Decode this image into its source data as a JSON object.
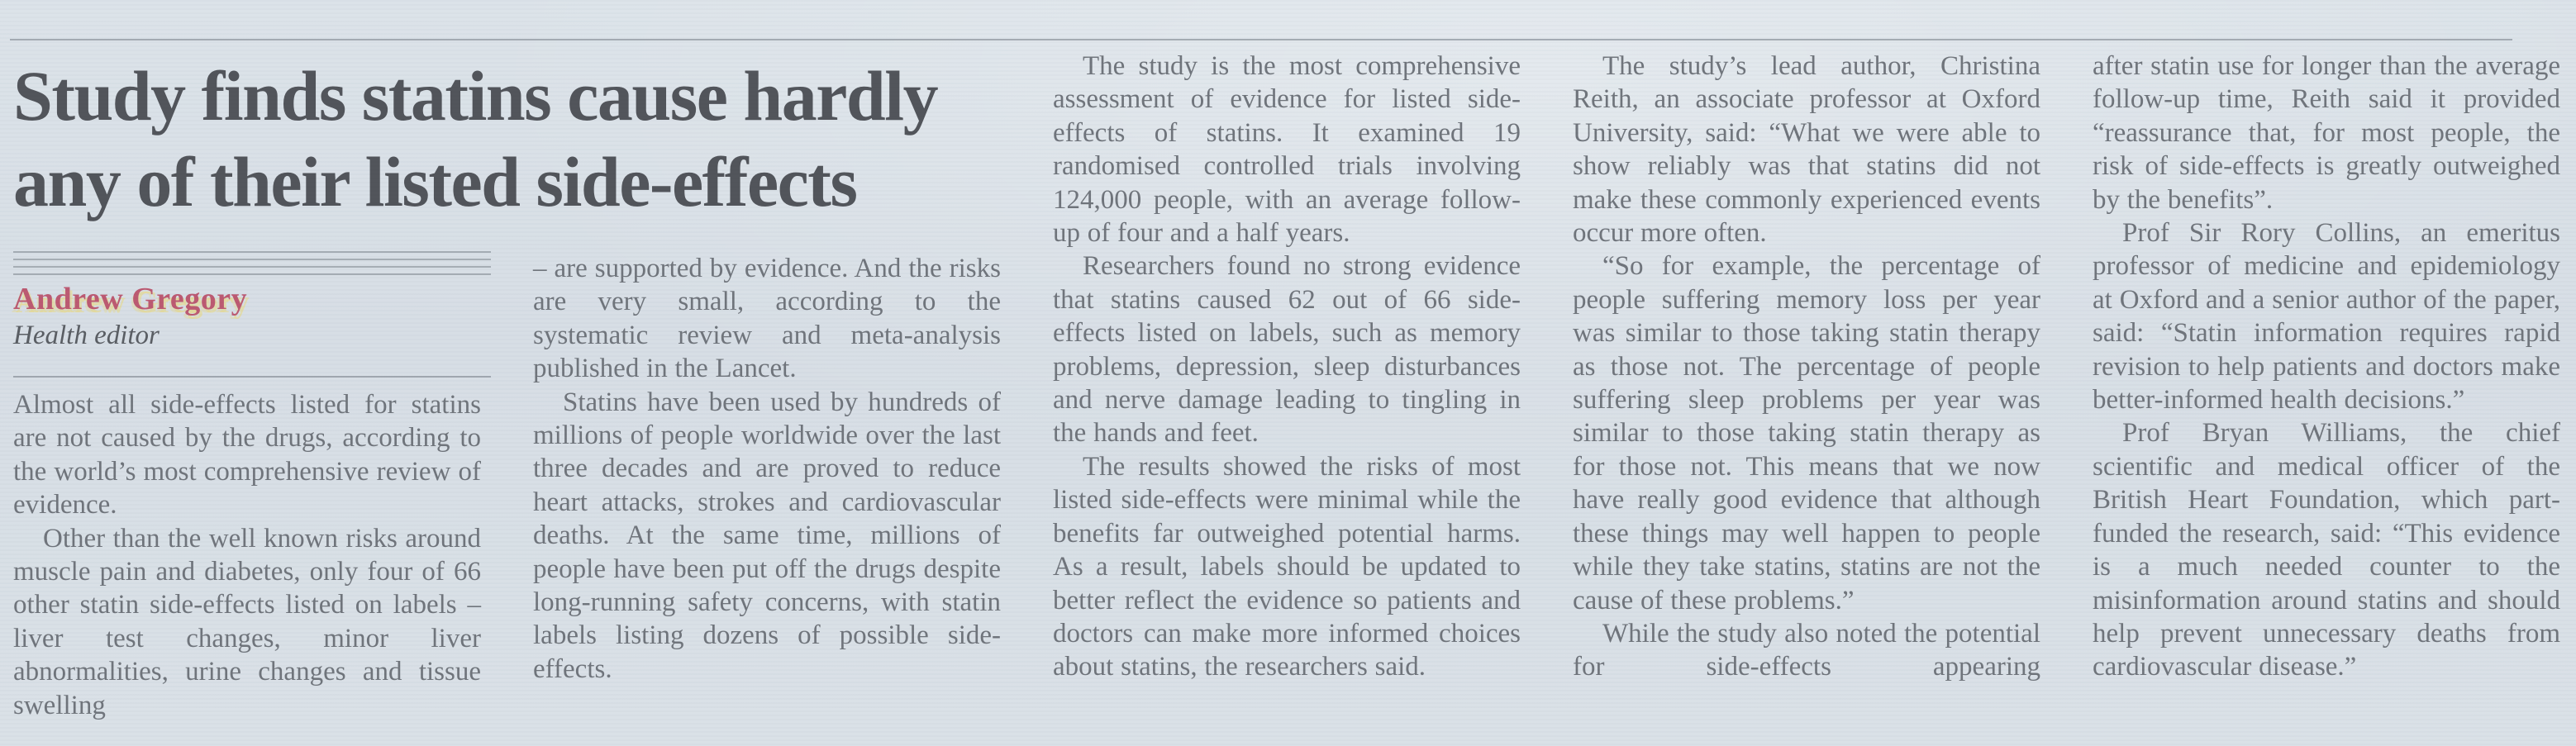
{
  "theme": {
    "paper": "#dae1e8",
    "ink": "#70757c",
    "headline-ink": "#52555b",
    "rule": "#99a0a8",
    "byline": "#bc5a72"
  },
  "article": {
    "headline_line1": "Study finds statins cause hardly",
    "headline_line2": "any of their listed side-effects",
    "byline": {
      "name": "Andrew Gregory",
      "role": "Health editor"
    },
    "columns": [
      {
        "paragraphs": [
          {
            "indent": false,
            "cont": false,
            "text": "Almost all side-effects listed for statins are not caused by the drugs, according to the world’s most comprehensive review of evidence."
          },
          {
            "indent": true,
            "cont": true,
            "text": "Other than the well known risks around muscle pain and diabetes, only four of 66 other statin side-effects listed on labels – liver test changes, minor liver abnormalities, urine changes and tissue swelling"
          }
        ]
      },
      {
        "paragraphs": [
          {
            "indent": false,
            "cont": false,
            "text": "– are supported by evidence. And the risks are very small, according to the systematic review and meta-analysis published in the Lancet."
          },
          {
            "indent": true,
            "cont": false,
            "text": "Statins have been used by hundreds of millions of people worldwide over the last three decades and are proved to reduce heart attacks, strokes and cardiovascular deaths. At the same time, millions of people have been put off the drugs despite long-running safety concerns, with statin labels listing dozens of possible side-effects."
          }
        ]
      },
      {
        "paragraphs": [
          {
            "indent": true,
            "cont": false,
            "text": "The study is the most comprehensive assessment of evidence for listed side-effects of statins. It examined 19 randomised controlled trials involving 124,000 people, with an average follow-up of four and a half years."
          },
          {
            "indent": true,
            "cont": false,
            "text": "Researchers found no strong evidence that statins caused 62 out of 66 side-effects listed on labels, such as memory problems, depression, sleep disturbances and nerve damage leading to tingling in the hands and feet."
          },
          {
            "indent": true,
            "cont": false,
            "text": "The results showed the risks of most listed side-effects were minimal while the benefits far outweighed potential harms. As a result, labels should be updated to better reflect the evidence so patients and doctors can make more informed choices about statins, the researchers said."
          }
        ]
      },
      {
        "paragraphs": [
          {
            "indent": true,
            "cont": false,
            "text": "The study’s lead author, Christina Reith, an associate professor at Oxford University, said: “What we were able to show reliably was that statins did not make these commonly experienced events occur more often."
          },
          {
            "indent": true,
            "cont": false,
            "text": "“So for example, the percentage of people suffering memory loss per year was similar to those taking statin therapy as those not. The percentage of people suffering sleep problems per year was similar to those taking statin therapy as for those not. This means that we now have really good evidence that although these things may well happen to people while they take statins, statins are not the cause of these problems.”"
          },
          {
            "indent": true,
            "cont": true,
            "text": "While the study also noted the potential for side-effects appearing"
          }
        ]
      },
      {
        "paragraphs": [
          {
            "indent": false,
            "cont": false,
            "text": "after statin use for longer than the average follow-up time, Reith said it provided “reassurance that, for most people, the risk of side-effects is greatly outweighed by the benefits”."
          },
          {
            "indent": true,
            "cont": false,
            "text": "Prof Sir Rory Collins, an emeritus professor of medicine and epidemiology at Oxford and a senior author of the paper, said: “Statin information requires rapid revision to help patients and doctors make better-informed health decisions.”"
          },
          {
            "indent": true,
            "cont": false,
            "text": "Prof Bryan Williams, the chief scientific and medical officer of the British Heart Foundation, which part-funded the research, said: “This evidence is a much needed counter to the misinformation around statins and should help prevent unnecessary deaths from cardiovascular disease.”"
          }
        ]
      }
    ]
  }
}
